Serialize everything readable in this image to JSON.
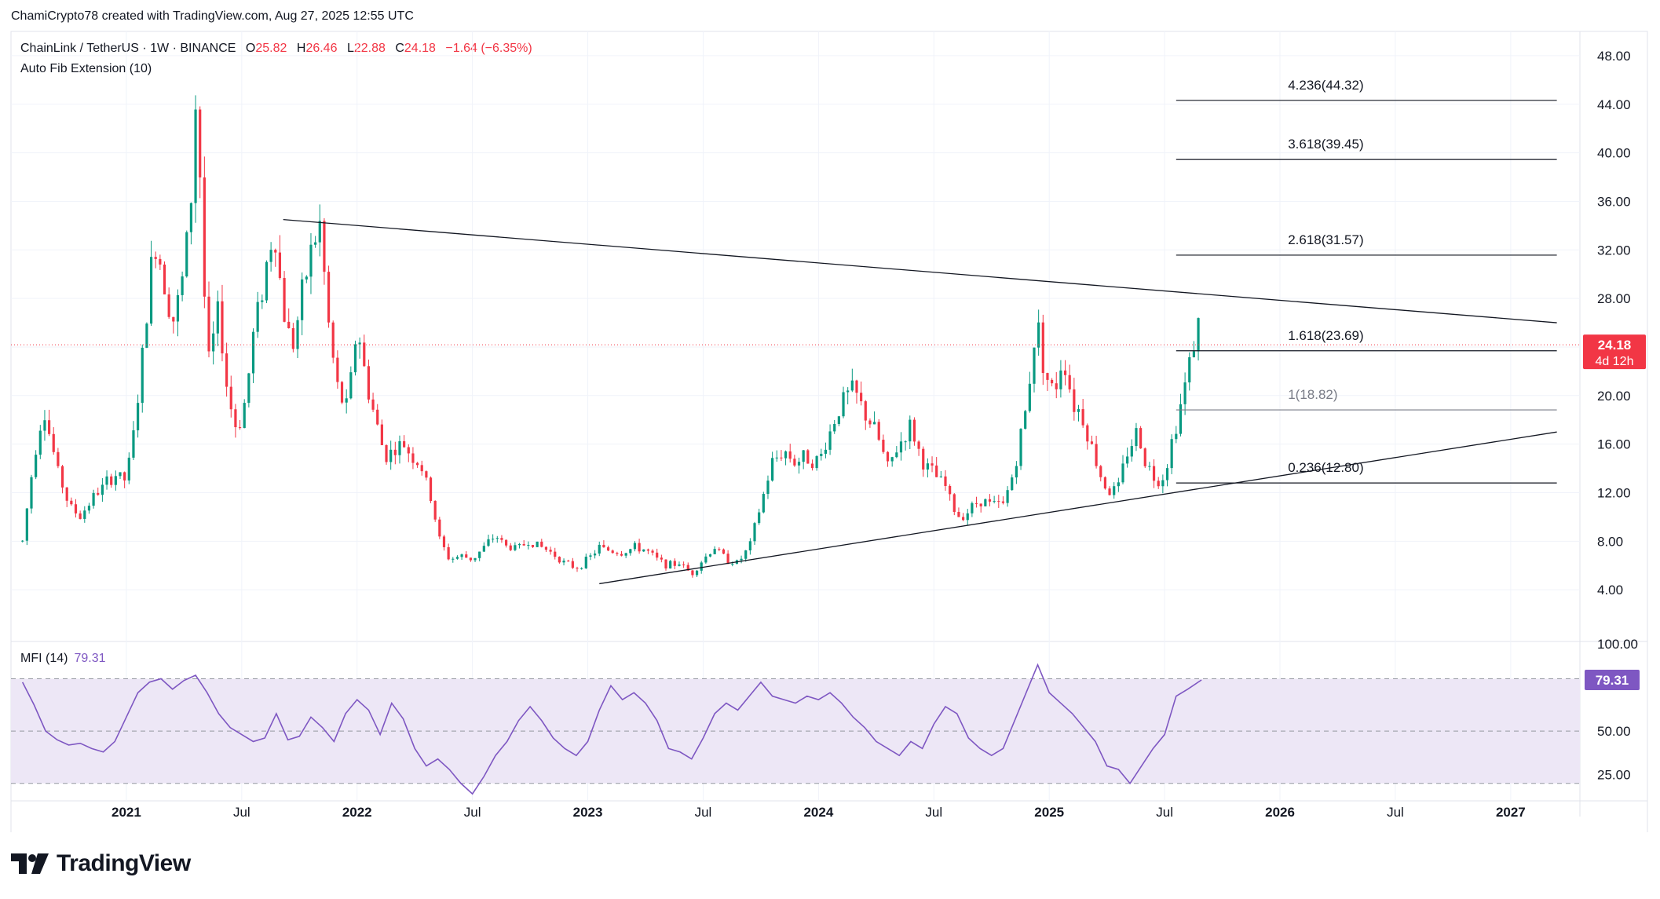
{
  "credit": "ChamiCrypto78 created with TradingView.com, Aug 27, 2025 12:55 UTC",
  "symbol": {
    "name": "ChainLink / TetherUS · 1W · BINANCE",
    "o_label": "O",
    "o": "25.82",
    "h_label": "H",
    "h": "26.46",
    "l_label": "L",
    "l": "22.88",
    "c_label": "C",
    "c": "24.18",
    "change": "−1.64 (−6.35%)"
  },
  "indicator_label": "Auto Fib Extension (10)",
  "mfi": {
    "label": "MFI (14)",
    "value": "79.31"
  },
  "price_tag": {
    "price": "24.18",
    "countdown": "4d 12h"
  },
  "logo_text": "TradingView",
  "colors": {
    "up": "#089981",
    "down": "#f23645",
    "mfi": "#7e57c2",
    "mfi_band": "#ede7f6",
    "fib": "#131722",
    "fib_muted": "#787b86"
  },
  "chart_data": {
    "type": "candlestick",
    "instrument": "ChainLink / TetherUS",
    "interval": "1W",
    "exchange": "BINANCE",
    "ylim": [
      0,
      50
    ],
    "y_ticks": [
      "4.00",
      "8.00",
      "12.00",
      "16.00",
      "20.00",
      "24.00",
      "28.00",
      "32.00",
      "36.00",
      "40.00",
      "44.00",
      "48.00"
    ],
    "x_ticks": [
      {
        "label": "2021",
        "year": 2021.0
      },
      {
        "label": "Jul",
        "year": 2021.5
      },
      {
        "label": "2022",
        "year": 2022.0
      },
      {
        "label": "Jul",
        "year": 2022.5
      },
      {
        "label": "2023",
        "year": 2023.0
      },
      {
        "label": "Jul",
        "year": 2023.5
      },
      {
        "label": "2024",
        "year": 2024.0
      },
      {
        "label": "Jul",
        "year": 2024.5
      },
      {
        "label": "2025",
        "year": 2025.0
      },
      {
        "label": "Jul",
        "year": 2025.5
      },
      {
        "label": "2026",
        "year": 2026.0
      },
      {
        "label": "Jul",
        "year": 2026.5
      },
      {
        "label": "2027",
        "year": 2027.0
      }
    ],
    "price_path": [
      [
        2020.55,
        8.0
      ],
      [
        2020.6,
        15.0
      ],
      [
        2020.64,
        19.0
      ],
      [
        2020.7,
        14.0
      ],
      [
        2020.75,
        11.0
      ],
      [
        2020.8,
        10.0
      ],
      [
        2020.85,
        11.5
      ],
      [
        2020.9,
        12.5
      ],
      [
        2020.95,
        13.5
      ],
      [
        2021.0,
        13.0
      ],
      [
        2021.04,
        18.0
      ],
      [
        2021.08,
        25.0
      ],
      [
        2021.12,
        33.0
      ],
      [
        2021.16,
        30.0
      ],
      [
        2021.2,
        26.0
      ],
      [
        2021.24,
        29.0
      ],
      [
        2021.28,
        36.0
      ],
      [
        2021.3,
        44.0
      ],
      [
        2021.32,
        38.0
      ],
      [
        2021.35,
        22.0
      ],
      [
        2021.4,
        27.0
      ],
      [
        2021.44,
        20.0
      ],
      [
        2021.48,
        17.0
      ],
      [
        2021.52,
        20.0
      ],
      [
        2021.55,
        25.0
      ],
      [
        2021.6,
        30.0
      ],
      [
        2021.64,
        34.0
      ],
      [
        2021.68,
        27.0
      ],
      [
        2021.72,
        24.0
      ],
      [
        2021.76,
        28.0
      ],
      [
        2021.8,
        32.0
      ],
      [
        2021.84,
        34.0
      ],
      [
        2021.88,
        25.0
      ],
      [
        2021.92,
        20.0
      ],
      [
        2021.96,
        19.0
      ],
      [
        2022.0,
        26.0
      ],
      [
        2022.04,
        21.0
      ],
      [
        2022.08,
        18.0
      ],
      [
        2022.12,
        15.0
      ],
      [
        2022.16,
        15.5
      ],
      [
        2022.2,
        16.0
      ],
      [
        2022.24,
        15.0
      ],
      [
        2022.28,
        14.0
      ],
      [
        2022.32,
        11.5
      ],
      [
        2022.36,
        8.0
      ],
      [
        2022.4,
        6.5
      ],
      [
        2022.45,
        6.8
      ],
      [
        2022.5,
        6.5
      ],
      [
        2022.55,
        7.5
      ],
      [
        2022.6,
        8.5
      ],
      [
        2022.65,
        7.5
      ],
      [
        2022.7,
        7.5
      ],
      [
        2022.75,
        8.0
      ],
      [
        2022.8,
        7.5
      ],
      [
        2022.85,
        7.0
      ],
      [
        2022.9,
        6.2
      ],
      [
        2022.95,
        5.8
      ],
      [
        2023.0,
        6.5
      ],
      [
        2023.05,
        7.5
      ],
      [
        2023.1,
        7.2
      ],
      [
        2023.15,
        7.0
      ],
      [
        2023.2,
        7.5
      ],
      [
        2023.25,
        7.3
      ],
      [
        2023.3,
        6.5
      ],
      [
        2023.35,
        6.0
      ],
      [
        2023.4,
        6.2
      ],
      [
        2023.45,
        5.3
      ],
      [
        2023.5,
        6.5
      ],
      [
        2023.55,
        7.5
      ],
      [
        2023.6,
        6.5
      ],
      [
        2023.65,
        6.2
      ],
      [
        2023.7,
        7.5
      ],
      [
        2023.75,
        11.0
      ],
      [
        2023.8,
        14.5
      ],
      [
        2023.85,
        15.5
      ],
      [
        2023.9,
        14.5
      ],
      [
        2023.95,
        15.0
      ],
      [
        2024.0,
        14.5
      ],
      [
        2024.05,
        17.0
      ],
      [
        2024.1,
        19.5
      ],
      [
        2024.15,
        20.5
      ],
      [
        2024.2,
        18.5
      ],
      [
        2024.25,
        17.0
      ],
      [
        2024.3,
        14.0
      ],
      [
        2024.35,
        16.0
      ],
      [
        2024.4,
        17.5
      ],
      [
        2024.45,
        14.5
      ],
      [
        2024.5,
        13.5
      ],
      [
        2024.55,
        12.5
      ],
      [
        2024.6,
        10.0
      ],
      [
        2024.65,
        10.5
      ],
      [
        2024.7,
        11.5
      ],
      [
        2024.75,
        11.0
      ],
      [
        2024.8,
        11.0
      ],
      [
        2024.85,
        14.0
      ],
      [
        2024.9,
        19.0
      ],
      [
        2024.93,
        24.0
      ],
      [
        2024.95,
        26.0
      ],
      [
        2024.98,
        22.0
      ],
      [
        2025.02,
        20.0
      ],
      [
        2025.06,
        23.5
      ],
      [
        2025.1,
        19.5
      ],
      [
        2025.14,
        18.5
      ],
      [
        2025.18,
        16.0
      ],
      [
        2025.22,
        13.5
      ],
      [
        2025.26,
        12.0
      ],
      [
        2025.3,
        12.5
      ],
      [
        2025.34,
        15.5
      ],
      [
        2025.38,
        17.0
      ],
      [
        2025.42,
        14.5
      ],
      [
        2025.46,
        13.0
      ],
      [
        2025.5,
        13.5
      ],
      [
        2025.54,
        17.0
      ],
      [
        2025.58,
        20.0
      ],
      [
        2025.62,
        24.0
      ],
      [
        2025.65,
        26.0
      ],
      [
        2025.66,
        24.18
      ]
    ],
    "trendlines": [
      {
        "from": [
          2021.68,
          34.5
        ],
        "to": [
          2027.2,
          26.0
        ]
      },
      {
        "from": [
          2023.05,
          4.5
        ],
        "to": [
          2027.2,
          17.0
        ]
      }
    ],
    "fib_extension": {
      "label": "Auto Fib Extension (10)",
      "x_range": [
        2025.55,
        2027.2
      ],
      "levels": [
        {
          "ratio": "0.236",
          "price": 12.8,
          "label": "0.236(12.80)"
        },
        {
          "ratio": "1",
          "price": 18.82,
          "label": "1(18.82)",
          "muted": true
        },
        {
          "ratio": "1.618",
          "price": 23.69,
          "label": "1.618(23.69)"
        },
        {
          "ratio": "2.618",
          "price": 31.57,
          "label": "2.618(31.57)"
        },
        {
          "ratio": "3.618",
          "price": 39.45,
          "label": "3.618(39.45)"
        },
        {
          "ratio": "4.236",
          "price": 44.32,
          "label": "4.236(44.32)"
        }
      ]
    },
    "last_price": 24.18,
    "mfi": {
      "name": "MFI (14)",
      "last": 79.31,
      "ylim": [
        10,
        100
      ],
      "bands": [
        20,
        50,
        80
      ],
      "y_ticks": [
        "25.00",
        "50.00",
        "100.00"
      ],
      "series": [
        [
          2020.55,
          78
        ],
        [
          2020.6,
          65
        ],
        [
          2020.65,
          50
        ],
        [
          2020.7,
          45
        ],
        [
          2020.75,
          42
        ],
        [
          2020.8,
          43
        ],
        [
          2020.85,
          40
        ],
        [
          2020.9,
          38
        ],
        [
          2020.95,
          44
        ],
        [
          2021.0,
          58
        ],
        [
          2021.05,
          72
        ],
        [
          2021.1,
          78
        ],
        [
          2021.15,
          80
        ],
        [
          2021.2,
          74
        ],
        [
          2021.25,
          79
        ],
        [
          2021.3,
          82
        ],
        [
          2021.35,
          72
        ],
        [
          2021.4,
          60
        ],
        [
          2021.45,
          52
        ],
        [
          2021.5,
          48
        ],
        [
          2021.55,
          44
        ],
        [
          2021.6,
          46
        ],
        [
          2021.65,
          60
        ],
        [
          2021.7,
          45
        ],
        [
          2021.75,
          47
        ],
        [
          2021.8,
          58
        ],
        [
          2021.85,
          52
        ],
        [
          2021.9,
          44
        ],
        [
          2021.95,
          60
        ],
        [
          2022.0,
          68
        ],
        [
          2022.05,
          62
        ],
        [
          2022.1,
          48
        ],
        [
          2022.15,
          66
        ],
        [
          2022.2,
          57
        ],
        [
          2022.25,
          40
        ],
        [
          2022.3,
          30
        ],
        [
          2022.35,
          34
        ],
        [
          2022.4,
          28
        ],
        [
          2022.45,
          20
        ],
        [
          2022.5,
          14
        ],
        [
          2022.55,
          24
        ],
        [
          2022.6,
          36
        ],
        [
          2022.65,
          44
        ],
        [
          2022.7,
          56
        ],
        [
          2022.75,
          64
        ],
        [
          2022.8,
          56
        ],
        [
          2022.85,
          46
        ],
        [
          2022.9,
          40
        ],
        [
          2022.95,
          36
        ],
        [
          2023.0,
          44
        ],
        [
          2023.05,
          62
        ],
        [
          2023.1,
          76
        ],
        [
          2023.15,
          68
        ],
        [
          2023.2,
          72
        ],
        [
          2023.25,
          66
        ],
        [
          2023.3,
          56
        ],
        [
          2023.35,
          40
        ],
        [
          2023.4,
          38
        ],
        [
          2023.45,
          34
        ],
        [
          2023.5,
          46
        ],
        [
          2023.55,
          60
        ],
        [
          2023.6,
          66
        ],
        [
          2023.65,
          62
        ],
        [
          2023.7,
          70
        ],
        [
          2023.75,
          78
        ],
        [
          2023.8,
          70
        ],
        [
          2023.85,
          68
        ],
        [
          2023.9,
          66
        ],
        [
          2023.95,
          70
        ],
        [
          2024.0,
          68
        ],
        [
          2024.05,
          72
        ],
        [
          2024.1,
          66
        ],
        [
          2024.15,
          58
        ],
        [
          2024.2,
          52
        ],
        [
          2024.25,
          44
        ],
        [
          2024.3,
          40
        ],
        [
          2024.35,
          36
        ],
        [
          2024.4,
          44
        ],
        [
          2024.45,
          40
        ],
        [
          2024.5,
          54
        ],
        [
          2024.55,
          64
        ],
        [
          2024.6,
          60
        ],
        [
          2024.65,
          46
        ],
        [
          2024.7,
          40
        ],
        [
          2024.75,
          36
        ],
        [
          2024.8,
          40
        ],
        [
          2024.85,
          56
        ],
        [
          2024.9,
          72
        ],
        [
          2024.95,
          88
        ],
        [
          2025.0,
          72
        ],
        [
          2025.05,
          66
        ],
        [
          2025.1,
          60
        ],
        [
          2025.15,
          52
        ],
        [
          2025.2,
          44
        ],
        [
          2025.25,
          30
        ],
        [
          2025.3,
          28
        ],
        [
          2025.35,
          20
        ],
        [
          2025.4,
          30
        ],
        [
          2025.45,
          40
        ],
        [
          2025.5,
          48
        ],
        [
          2025.55,
          70
        ],
        [
          2025.6,
          74
        ],
        [
          2025.66,
          79.31
        ]
      ]
    }
  }
}
